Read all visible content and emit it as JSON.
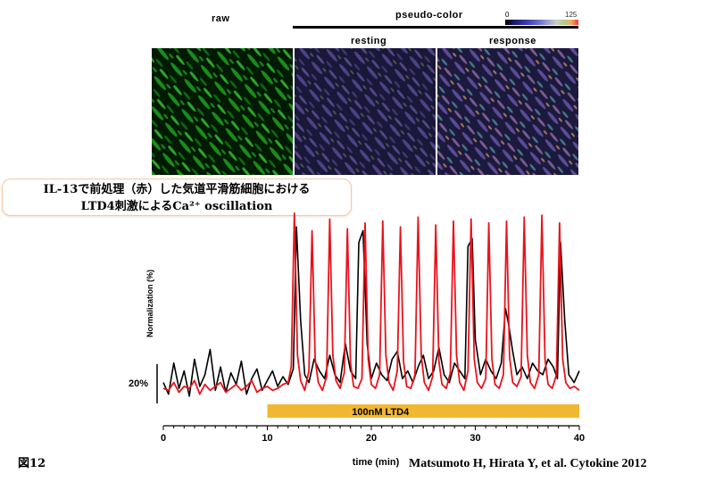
{
  "images": {
    "raw_label": "raw",
    "pseudo_color_label": "pseudo-color",
    "resting_label": "resting",
    "response_label": "response",
    "colorbar_min": "0",
    "colorbar_max": "125"
  },
  "title_lines": [
    "IL-13で前処理（赤）した気道平滑筋細胞における",
    "LTD4刺激によるCa²⁺ oscillation"
  ],
  "figure_label": "図12",
  "citation": "Matsumoto H, Hirata Y, et al. Cytokine 2012",
  "colors": {
    "raw_green": "#22c022",
    "red_trace": "#e8141c",
    "black_trace": "#000000",
    "stimulus_bar": "#f2b731"
  },
  "chart_data": {
    "type": "line",
    "xlabel": "time (min)",
    "ylabel": "Normalization (%)",
    "xlim": [
      0,
      40
    ],
    "xticks": [
      0,
      10,
      20,
      30,
      40
    ],
    "scale_bar_label": "20%",
    "stimulus": {
      "label": "100nM LTD4",
      "start": 10,
      "end": 40
    },
    "series": [
      {
        "color": "#e8141c",
        "x": [
          0,
          0.5,
          1,
          1.5,
          2,
          2.5,
          3,
          3.5,
          4,
          4.5,
          5,
          5.5,
          6,
          6.5,
          7,
          7.5,
          8,
          8.5,
          9,
          9.5,
          10,
          10.5,
          11,
          11.5,
          12,
          12.3,
          12.6,
          12.9,
          13.2,
          13.6,
          14,
          14.3,
          14.6,
          14.9,
          15.3,
          15.7,
          16,
          16.3,
          16.6,
          17,
          17.4,
          17.7,
          18,
          18.3,
          18.7,
          19.1,
          19.4,
          19.7,
          20,
          20.4,
          20.8,
          21.1,
          21.4,
          21.7,
          22.1,
          22.5,
          22.8,
          23.1,
          23.4,
          23.8,
          24.2,
          24.5,
          24.8,
          25.1,
          25.5,
          25.9,
          26.2,
          26.5,
          26.8,
          27.2,
          27.6,
          27.9,
          28.2,
          28.5,
          28.9,
          29.3,
          29.6,
          29.9,
          30.2,
          30.6,
          31,
          31.3,
          31.6,
          31.9,
          32.3,
          32.7,
          33,
          33.3,
          33.6,
          34,
          34.4,
          34.7,
          35,
          35.3,
          35.7,
          36.1,
          36.4,
          36.7,
          37,
          37.4,
          37.8,
          38.1,
          38.4,
          38.7,
          39.1,
          39.5,
          40
        ],
        "y": [
          5,
          4,
          8,
          3,
          6,
          5,
          9,
          2,
          7,
          4,
          6,
          8,
          3,
          5,
          7,
          4,
          6,
          9,
          3,
          5,
          6,
          4,
          5,
          7,
          8,
          16,
          95,
          22,
          9,
          4,
          14,
          86,
          20,
          8,
          4,
          11,
          92,
          22,
          9,
          5,
          13,
          87,
          18,
          6,
          5,
          10,
          90,
          20,
          7,
          5,
          12,
          91,
          22,
          8,
          4,
          14,
          88,
          19,
          6,
          5,
          12,
          93,
          22,
          8,
          4,
          11,
          89,
          19,
          7,
          5,
          13,
          91,
          22,
          8,
          4,
          14,
          92,
          20,
          8,
          5,
          10,
          90,
          20,
          7,
          5,
          12,
          91,
          21,
          8,
          6,
          11,
          93,
          22,
          8,
          5,
          12,
          94,
          20,
          7,
          5,
          12,
          90,
          20,
          8,
          5,
          6,
          4
        ]
      },
      {
        "color": "#000000",
        "x": [
          0,
          0.5,
          1,
          1.5,
          2,
          2.5,
          3,
          3.5,
          4,
          4.5,
          5,
          5.5,
          6,
          6.5,
          7,
          7.5,
          8,
          8.5,
          9,
          9.5,
          10,
          10.5,
          11,
          11.5,
          12,
          12.5,
          12.8,
          13.2,
          13.6,
          14,
          14.5,
          15,
          15.5,
          16,
          16.5,
          17,
          17.5,
          18,
          18.5,
          18.8,
          19.2,
          19.6,
          20,
          20.5,
          21,
          21.5,
          22,
          22.5,
          23,
          23.5,
          24,
          24.5,
          25,
          25.5,
          26,
          26.5,
          27,
          27.5,
          28,
          28.5,
          29,
          29.3,
          29.7,
          30,
          30.5,
          31,
          31.5,
          32,
          32.5,
          32.9,
          33.2,
          33.6,
          34,
          34.5,
          35,
          35.5,
          36,
          36.5,
          37,
          37.5,
          37.9,
          38.2,
          38.6,
          39,
          39.5,
          40
        ],
        "y": [
          8,
          2,
          18,
          5,
          14,
          1,
          20,
          6,
          12,
          25,
          4,
          16,
          3,
          13,
          7,
          19,
          2,
          10,
          15,
          4,
          9,
          14,
          6,
          11,
          7,
          15,
          88,
          40,
          12,
          8,
          20,
          14,
          10,
          22,
          12,
          8,
          28,
          14,
          10,
          80,
          86,
          28,
          10,
          18,
          12,
          9,
          20,
          24,
          10,
          14,
          8,
          16,
          22,
          10,
          14,
          26,
          12,
          8,
          18,
          14,
          10,
          78,
          82,
          30,
          12,
          20,
          14,
          10,
          18,
          46,
          38,
          24,
          12,
          16,
          10,
          18,
          14,
          12,
          20,
          16,
          10,
          80,
          40,
          12,
          8,
          14
        ]
      }
    ]
  }
}
